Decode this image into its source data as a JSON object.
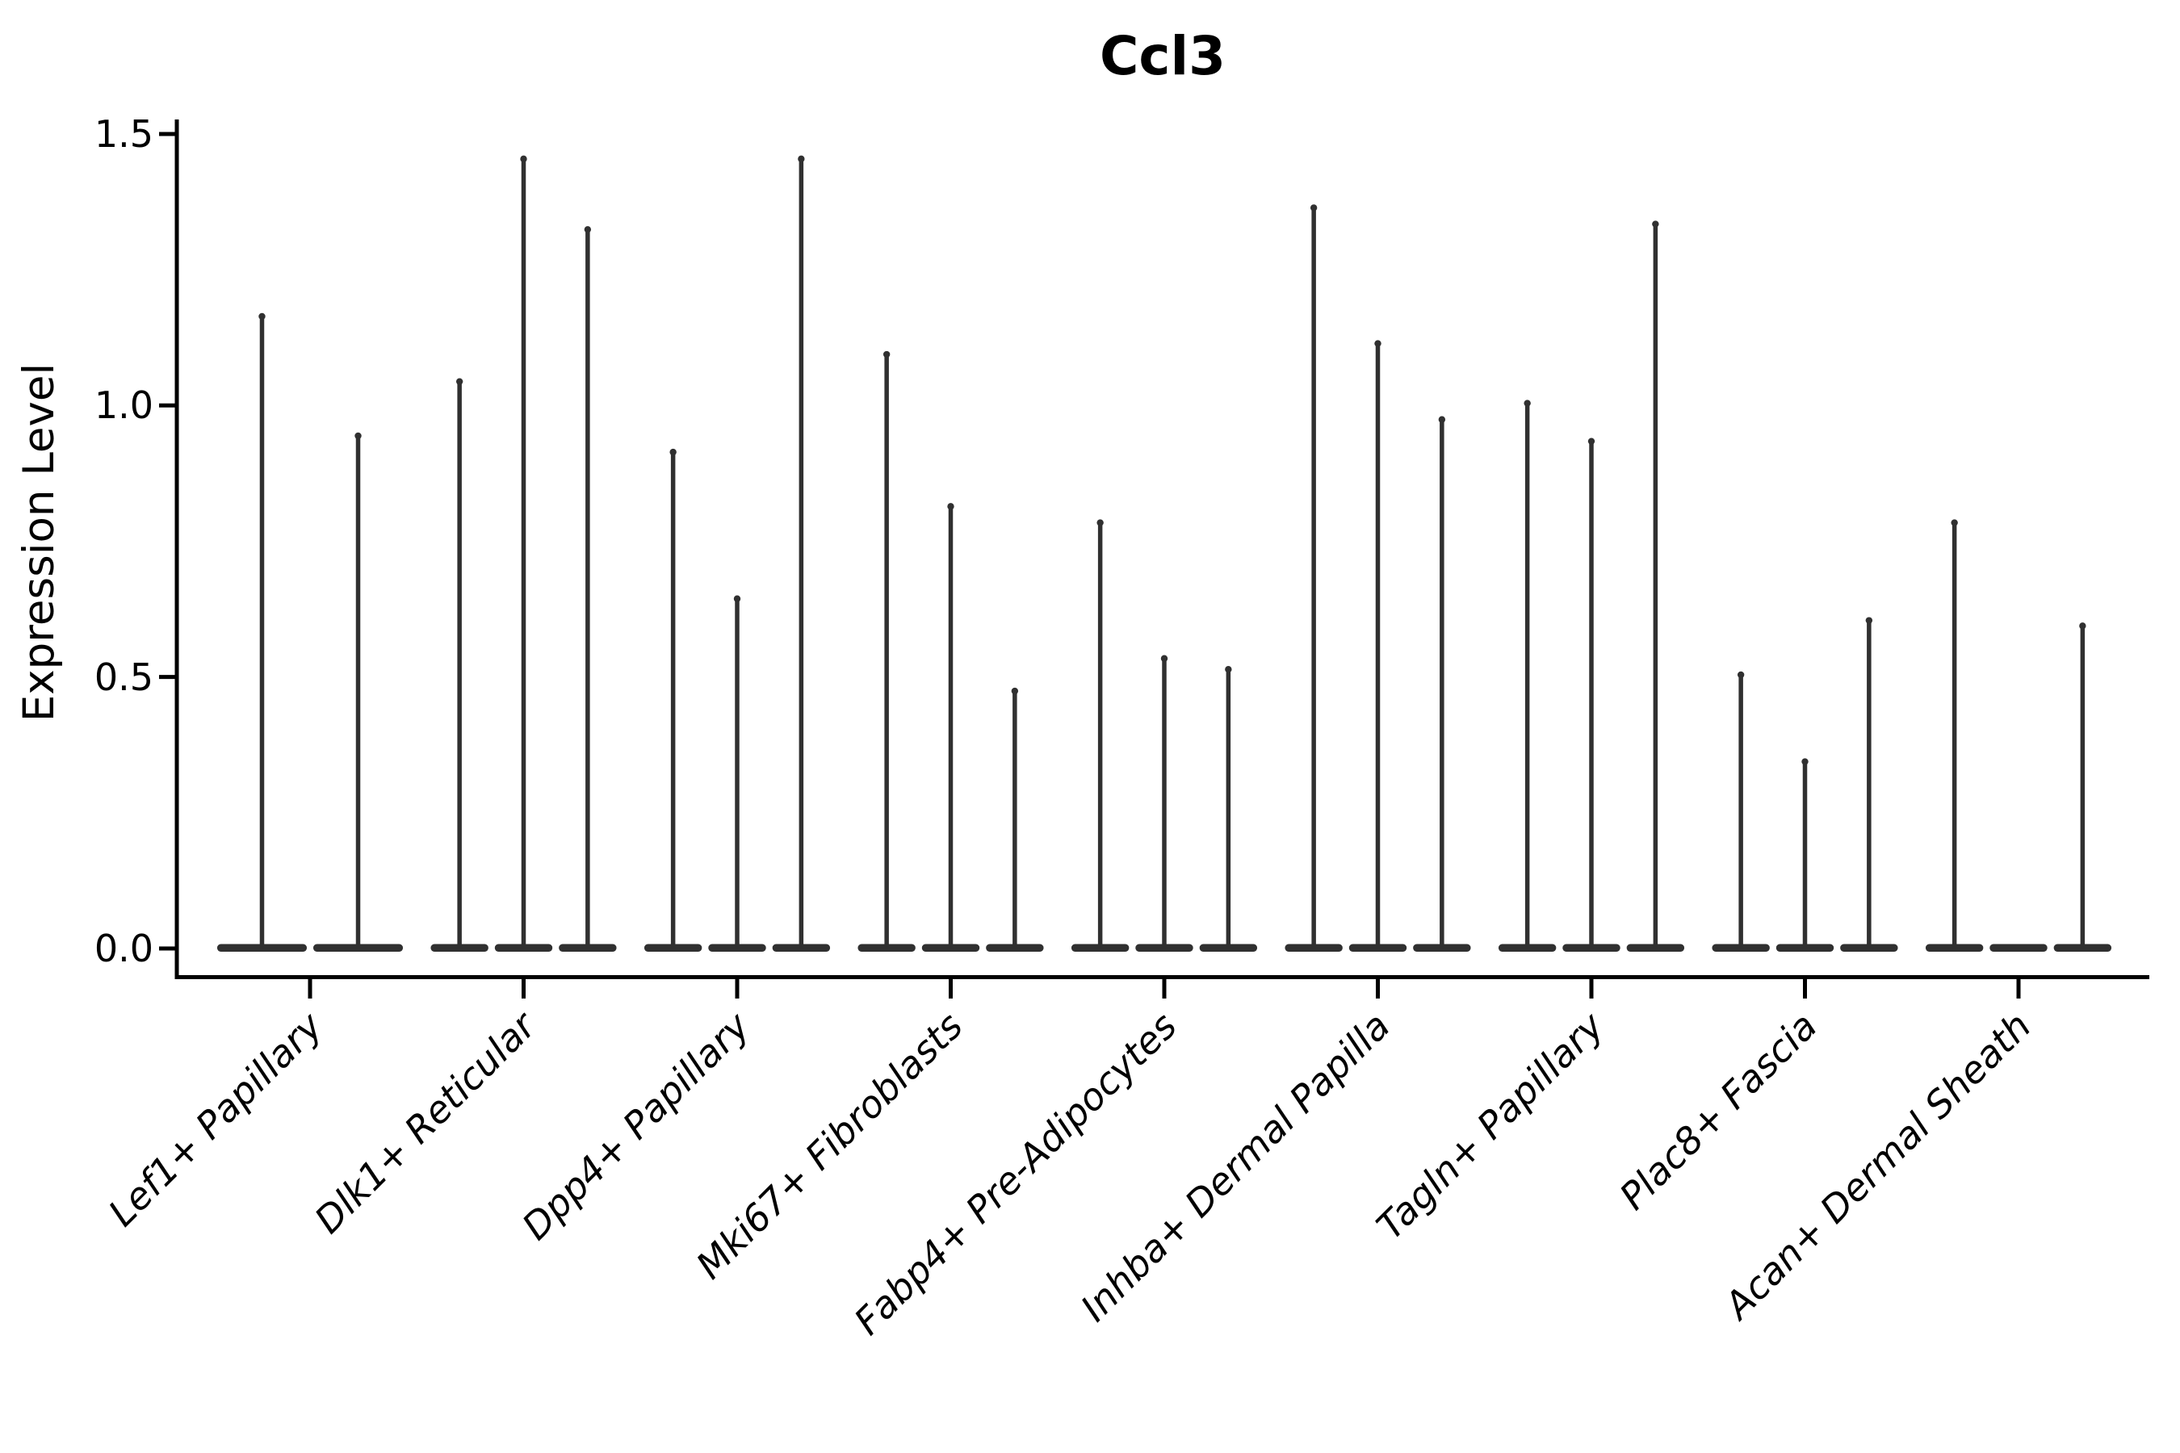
{
  "title": "Ccl3",
  "y_axis_label": "Expression Level",
  "chart_data": {
    "type": "violin",
    "title": "Ccl3",
    "xlabel": "",
    "ylabel": "Expression Level",
    "ylim": [
      0,
      1.5
    ],
    "yticks": [
      0.0,
      0.5,
      1.0,
      1.5
    ],
    "ytick_labels": [
      "0.0",
      "0.5",
      "1.0",
      "1.5"
    ],
    "grid": false,
    "legend": "none",
    "background": "#ffffff",
    "violin_fill": "#303030",
    "axis_color": "#000000",
    "note": "Each violin is a needle: wide flat density at 0 plus a thin spike up to the listed maximum expression value. A maximum of 0 means a flat violin with no spike.",
    "categories": [
      {
        "label": "Lef1+ Papillary",
        "violin_maxima": [
          1.17,
          0.95
        ]
      },
      {
        "label": "Dlk1+ Reticular",
        "violin_maxima": [
          1.05,
          1.46,
          1.33
        ]
      },
      {
        "label": "Dpp4+ Papillary",
        "violin_maxima": [
          0.92,
          0.65,
          1.46
        ]
      },
      {
        "label": "Mki67+ Fibroblasts",
        "violin_maxima": [
          1.1,
          0.82,
          0.48
        ]
      },
      {
        "label": "Fabp4+ Pre-Adipocytes",
        "violin_maxima": [
          0.79,
          0.54,
          0.52
        ]
      },
      {
        "label": "Inhba+ Dermal Papilla",
        "violin_maxima": [
          1.37,
          1.12,
          0.98
        ]
      },
      {
        "label": "Tagln+ Papillary",
        "violin_maxima": [
          1.01,
          0.94,
          1.34
        ]
      },
      {
        "label": "Plac8+ Fascia",
        "violin_maxima": [
          0.51,
          0.35,
          0.61
        ]
      },
      {
        "label": "Acan+ Dermal Sheath",
        "violin_maxima": [
          0.79,
          0.0,
          0.6
        ]
      }
    ]
  }
}
